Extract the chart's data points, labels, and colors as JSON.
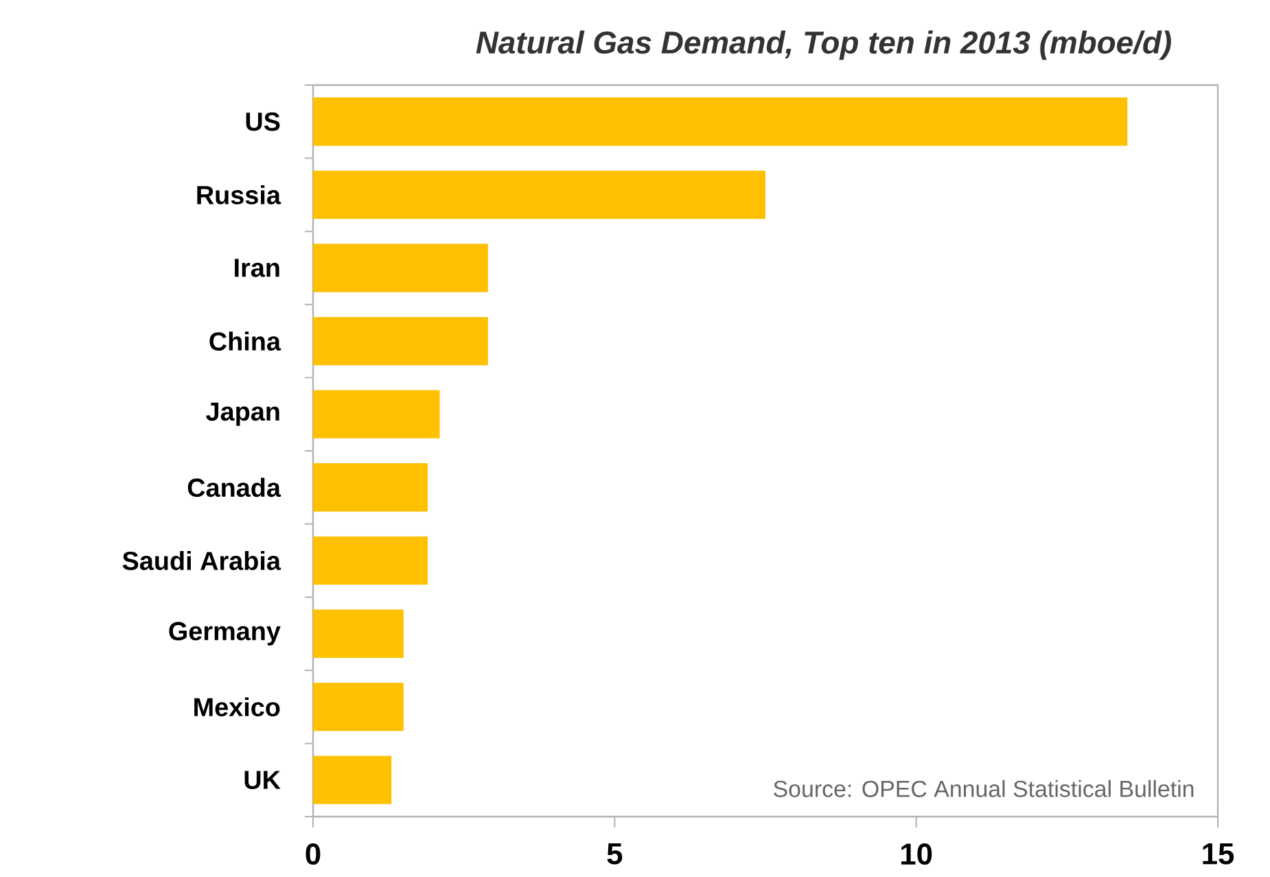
{
  "chart_data": {
    "type": "bar",
    "orientation": "horizontal",
    "title": "Natural Gas Demand, Top ten in 2013 (mboe/d)",
    "categories": [
      "US",
      "Russia",
      "Iran",
      "China",
      "Japan",
      "Canada",
      "Saudi Arabia",
      "Germany",
      "Mexico",
      "UK"
    ],
    "values": [
      13.5,
      7.5,
      2.9,
      2.9,
      2.1,
      1.9,
      1.9,
      1.5,
      1.5,
      1.3
    ],
    "color": "#ffc000",
    "xlim": [
      0,
      15
    ],
    "xticks": [
      0,
      5,
      10,
      15
    ],
    "grid": false,
    "annotations": [
      "Source: OPEC Annual Statistical Bulletin"
    ]
  }
}
